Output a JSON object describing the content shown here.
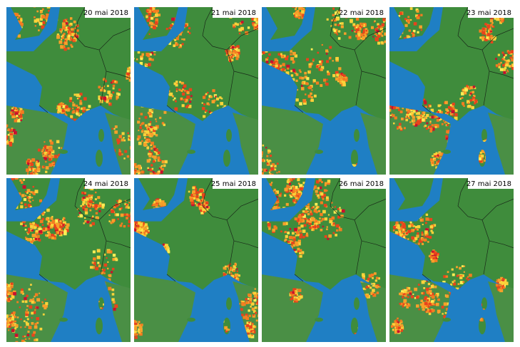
{
  "panels": [
    {
      "date": "20 mai 2018"
    },
    {
      "date": "21 mai 2018"
    },
    {
      "date": "22 mai 2018"
    },
    {
      "date": "23 mai 2018"
    },
    {
      "date": "24 mai 2018"
    },
    {
      "date": "25 mai 2018"
    },
    {
      "date": "26 mai 2018"
    },
    {
      "date": "27 mai 2018"
    }
  ]
}
